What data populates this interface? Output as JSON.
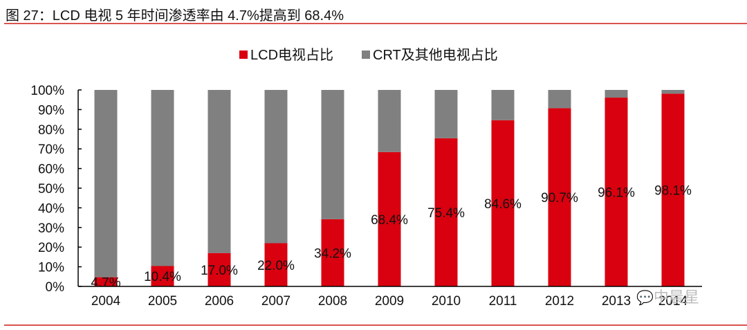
{
  "title": "图 27：LCD 电视 5 年时间渗透率由 4.7%提高到 68.4%",
  "watermark": "中晨星",
  "chart_data": {
    "type": "bar",
    "stacked": true,
    "title": "图 27：LCD 电视 5 年时间渗透率由 4.7%提高到 68.4%",
    "xlabel": "",
    "ylabel": "",
    "ylim": [
      0,
      100
    ],
    "y_ticks": [
      "0%",
      "10%",
      "20%",
      "30%",
      "40%",
      "50%",
      "60%",
      "70%",
      "80%",
      "90%",
      "100%"
    ],
    "categories": [
      "2004",
      "2005",
      "2006",
      "2007",
      "2008",
      "2009",
      "2010",
      "2011",
      "2012",
      "2013",
      "2014"
    ],
    "legend_position": "top-center",
    "grid": false,
    "series": [
      {
        "name": "LCD电视占比",
        "color": "#d9000f",
        "values": [
          4.7,
          10.4,
          17.0,
          22.0,
          34.2,
          68.4,
          75.4,
          84.6,
          90.7,
          96.1,
          98.1
        ],
        "labels": [
          "4.7%",
          "10.4%",
          "17.0%",
          "22.0%",
          "34.2%",
          "68.4%",
          "75.4%",
          "84.6%",
          "90.7%",
          "96.1%",
          "98.1%"
        ]
      },
      {
        "name": "CRT及其他电视占比",
        "color": "#808080",
        "values": [
          95.3,
          89.6,
          83.0,
          78.0,
          65.8,
          31.6,
          24.6,
          15.4,
          9.3,
          3.9,
          1.9
        ]
      }
    ]
  }
}
